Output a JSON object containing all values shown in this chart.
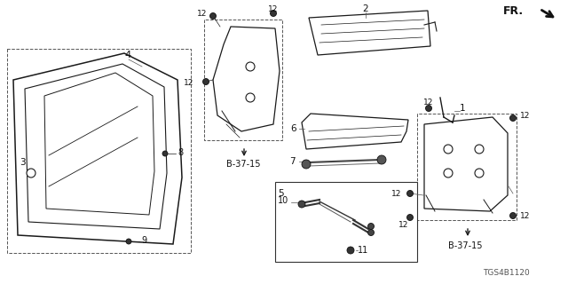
{
  "bg_color": "#ffffff",
  "diagram_id": "TGS4B1120",
  "ref_label": "B-37-15",
  "fr_label": "FR.",
  "line_color": "#1a1a1a",
  "dark_color": "#111111",
  "gray_color": "#555555",
  "light_gray": "#aaaaaa"
}
